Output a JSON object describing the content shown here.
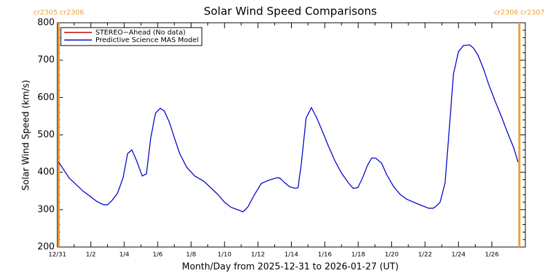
{
  "chart_data": {
    "type": "line",
    "title": "Solar Wind Speed Comparisons",
    "xlabel": "Month/Day from 2025-12-31 to 2026-01-27 (UT)",
    "ylabel": "Solar Wind Speed (km/s)",
    "xlim": [
      0,
      28
    ],
    "xticks": [
      {
        "value": 0,
        "label": "12/31"
      },
      {
        "value": 2,
        "label": "1/2"
      },
      {
        "value": 4,
        "label": "1/4"
      },
      {
        "value": 6,
        "label": "1/6"
      },
      {
        "value": 8,
        "label": "1/8"
      },
      {
        "value": 10,
        "label": "1/10"
      },
      {
        "value": 12,
        "label": "1/12"
      },
      {
        "value": 14,
        "label": "1/14"
      },
      {
        "value": 16,
        "label": "1/16"
      },
      {
        "value": 18,
        "label": "1/18"
      },
      {
        "value": 20,
        "label": "1/20"
      },
      {
        "value": 22,
        "label": "1/22"
      },
      {
        "value": 24,
        "label": "1/24"
      },
      {
        "value": 26,
        "label": "1/26"
      }
    ],
    "ylim": [
      200,
      800
    ],
    "yticks": [
      200,
      300,
      400,
      500,
      600,
      700,
      800
    ],
    "legend": "upper left",
    "markers": [
      {
        "x": 0.08,
        "label": "cr2305 cr2306",
        "color": "#f0a030"
      },
      {
        "x": 27.64,
        "label": "cr2306 cr2307",
        "color": "#f0a030"
      }
    ],
    "series": [
      {
        "name": "STEREO−Ahead (No data)",
        "color": "#c00000",
        "x": [],
        "values": []
      },
      {
        "name": "Predictive Science MAS Model",
        "color": "#0000cc",
        "x": [
          0.08,
          0.7,
          1.53,
          2.36,
          2.77,
          3.0,
          3.26,
          3.6,
          3.93,
          4.2,
          4.46,
          4.75,
          5.08,
          5.33,
          5.58,
          5.87,
          6.16,
          6.4,
          6.7,
          6.98,
          7.31,
          7.73,
          8.22,
          8.76,
          9.17,
          9.59,
          10.0,
          10.4,
          10.9,
          11.1,
          11.4,
          11.78,
          12.2,
          12.6,
          13.1,
          13.3,
          13.6,
          13.9,
          14.26,
          14.4,
          14.6,
          14.88,
          15.2,
          15.5,
          15.8,
          16.2,
          16.6,
          17.0,
          17.44,
          17.7,
          17.98,
          18.26,
          18.55,
          18.8,
          19.05,
          19.4,
          19.7,
          20.1,
          20.5,
          20.9,
          21.36,
          21.8,
          22.2,
          22.5,
          22.7,
          22.9,
          23.2,
          23.43,
          23.7,
          24.0,
          24.3,
          24.67,
          24.9,
          25.17,
          25.5,
          25.8,
          26.16,
          26.57,
          26.98,
          27.3,
          27.56
        ],
        "values": [
          427,
          385,
          350,
          322,
          313,
          313,
          324,
          344,
          385,
          450,
          460,
          430,
          390,
          396,
          490,
          558,
          571,
          564,
          534,
          495,
          451,
          414,
          390,
          376,
          359,
          341,
          320,
          306,
          298,
          294,
          307,
          339,
          370,
          378,
          385,
          385,
          372,
          361,
          357,
          359,
          424,
          545,
          573,
          547,
          516,
          472,
          431,
          398,
          370,
          357,
          359,
          385,
          418,
          438,
          438,
          424,
          394,
          363,
          341,
          328,
          319,
          311,
          304,
          304,
          311,
          320,
          372,
          505,
          663,
          723,
          739,
          741,
          732,
          713,
          676,
          636,
          594,
          549,
          501,
          466,
          427
        ]
      }
    ]
  }
}
